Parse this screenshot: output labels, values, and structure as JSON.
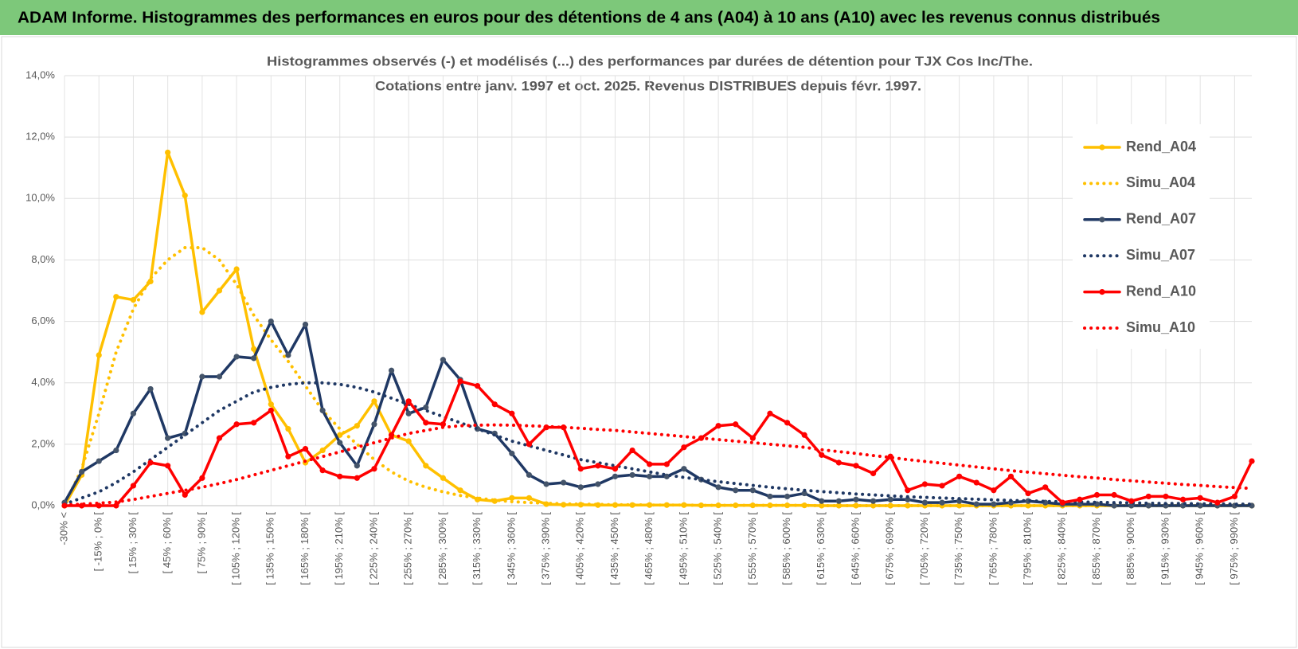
{
  "header": {
    "title": "ADAM Informe. Histogrammes des performances en euros pour des détentions de 4 ans (A04) à 10 ans (A10) avec les revenus connus distribués"
  },
  "chart_data": {
    "type": "line",
    "title": [
      "Histogrammes observés (-) et modélisés (...) des performances par durées de détention pour TJX Cos Inc/The.",
      "Cotations entre janv. 1997 et oct. 2025. Revenus DISTRIBUES depuis févr. 1997."
    ],
    "categories": [
      "-30% <",
      null,
      "[ -15% ; 0% [",
      null,
      "[ 15% ; 30% [",
      null,
      "[ 45% ; 60% [",
      null,
      "[ 75% ; 90% [",
      null,
      "[ 105% ; 120% [",
      null,
      "[ 135% ; 150% [",
      null,
      "[ 165% ; 180% [",
      null,
      "[ 195% ; 210% [",
      null,
      "[ 225% ; 240% [",
      null,
      "[ 255% ; 270% [",
      null,
      "[ 285% ; 300% [",
      null,
      "[ 315% ; 330% [",
      null,
      "[ 345% ; 360% [",
      null,
      "[ 375% ; 390% [",
      null,
      "[ 405% ; 420% [",
      null,
      "[ 435% ; 450% [",
      null,
      "[ 465% ; 480% [",
      null,
      "[ 495% ; 510% [",
      null,
      "[ 525% ; 540% [",
      null,
      "[ 555% ; 570% [",
      null,
      "[ 585% ; 600% [",
      null,
      "[ 615% ; 630% [",
      null,
      "[ 645% ; 660% [",
      null,
      "[ 675% ; 690% [",
      null,
      "[ 705% ; 720% [",
      null,
      "[ 735% ; 750% [",
      null,
      "[ 765% ; 780% [",
      null,
      "[ 795% ; 810% [",
      null,
      "[ 825% ; 840% [",
      null,
      "[ 855% ; 870% [",
      null,
      "[ 885% ; 900% [",
      null,
      "[ 915% ; 930% [",
      null,
      "[ 945% ; 960% [",
      null,
      "[ 975% ; 990% [",
      null
    ],
    "series": [
      {
        "name": "Rend_A04",
        "color": "#ffc000",
        "style": "solid",
        "values": [
          0.0,
          1.0,
          4.9,
          6.8,
          6.7,
          7.3,
          11.5,
          10.1,
          6.3,
          7.0,
          7.7,
          5.1,
          3.3,
          2.5,
          1.4,
          1.8,
          2.3,
          2.6,
          3.4,
          2.3,
          2.1,
          1.3,
          0.9,
          0.5,
          0.2,
          0.15,
          0.25,
          0.25,
          0.05,
          0.03,
          0.03,
          0.02,
          0.02,
          0.02,
          0.02,
          0.02,
          0.02,
          0.01,
          0.01,
          0.01,
          0.01,
          0.01,
          0.01,
          0.01,
          0,
          0,
          0,
          0,
          0,
          0,
          0,
          0,
          0,
          0,
          0,
          0,
          0,
          0,
          0,
          0,
          0,
          0,
          0,
          0,
          0,
          0,
          0,
          0,
          0,
          0
        ]
      },
      {
        "name": "Simu_A04",
        "color": "#ffc000",
        "style": "dotted",
        "values": [
          0.0,
          1.2,
          3.0,
          5.0,
          6.4,
          7.4,
          8.0,
          8.4,
          8.4,
          8.0,
          7.2,
          6.2,
          5.4,
          4.7,
          3.9,
          3.1,
          2.5,
          2.0,
          1.5,
          1.1,
          0.8,
          0.6,
          0.45,
          0.33,
          0.25,
          0.18,
          0.13,
          0.1,
          0.08,
          0.06,
          0.05,
          0.04,
          0.03,
          0.03,
          0.02,
          0.02,
          0.02,
          0.01,
          0.01,
          0.01,
          0.01,
          0.01,
          0.01,
          0.01,
          0,
          0,
          0,
          0,
          0,
          0,
          0,
          0,
          0,
          0,
          0,
          0,
          0,
          0,
          0,
          0,
          0,
          0,
          0,
          0,
          0,
          0,
          0,
          0,
          0,
          0
        ]
      },
      {
        "name": "Rend_A07",
        "color": "#1f3864",
        "style": "solid",
        "values": [
          0.1,
          1.1,
          1.45,
          1.8,
          3.0,
          3.8,
          2.2,
          2.35,
          4.2,
          4.2,
          4.85,
          4.8,
          6.0,
          4.9,
          5.9,
          3.1,
          2.05,
          1.3,
          2.65,
          4.4,
          3.0,
          3.2,
          4.75,
          4.1,
          2.5,
          2.35,
          1.7,
          1.0,
          0.7,
          0.75,
          0.6,
          0.7,
          0.95,
          1.0,
          0.95,
          0.95,
          1.2,
          0.85,
          0.6,
          0.5,
          0.5,
          0.3,
          0.3,
          0.4,
          0.15,
          0.15,
          0.2,
          0.15,
          0.2,
          0.2,
          0.1,
          0.1,
          0.15,
          0.05,
          0.05,
          0.1,
          0.15,
          0.1,
          0.05,
          0.05,
          0.05,
          0,
          0,
          0,
          0,
          0,
          0,
          0,
          0,
          0
        ]
      },
      {
        "name": "Simu_A07",
        "color": "#1f3864",
        "style": "dotted",
        "values": [
          0.05,
          0.25,
          0.45,
          0.75,
          1.1,
          1.5,
          1.9,
          2.3,
          2.7,
          3.1,
          3.4,
          3.7,
          3.85,
          3.95,
          4.0,
          4.0,
          3.95,
          3.85,
          3.7,
          3.5,
          3.3,
          3.1,
          2.9,
          2.7,
          2.5,
          2.3,
          2.1,
          1.95,
          1.8,
          1.65,
          1.5,
          1.4,
          1.3,
          1.2,
          1.1,
          1.0,
          0.92,
          0.85,
          0.78,
          0.72,
          0.66,
          0.6,
          0.55,
          0.5,
          0.46,
          0.42,
          0.38,
          0.35,
          0.32,
          0.29,
          0.27,
          0.25,
          0.23,
          0.21,
          0.19,
          0.17,
          0.16,
          0.14,
          0.13,
          0.12,
          0.11,
          0.1,
          0.09,
          0.08,
          0.07,
          0.07,
          0.06,
          0.06,
          0.05,
          0.05
        ]
      },
      {
        "name": "Rend_A10",
        "color": "#ff0000",
        "style": "solid",
        "values": [
          0,
          0,
          0,
          0,
          0.65,
          1.4,
          1.3,
          0.35,
          0.9,
          2.2,
          2.65,
          2.7,
          3.1,
          1.6,
          1.85,
          1.15,
          0.95,
          0.9,
          1.2,
          2.3,
          3.4,
          2.7,
          2.65,
          4.05,
          3.9,
          3.3,
          3.0,
          2.0,
          2.55,
          2.55,
          1.2,
          1.3,
          1.2,
          1.8,
          1.35,
          1.35,
          1.9,
          2.2,
          2.6,
          2.65,
          2.2,
          3.0,
          2.7,
          2.3,
          1.65,
          1.4,
          1.3,
          1.05,
          1.6,
          0.5,
          0.7,
          0.65,
          0.95,
          0.75,
          0.5,
          0.95,
          0.4,
          0.6,
          0.1,
          0.2,
          0.35,
          0.35,
          0.15,
          0.3,
          0.3,
          0.2,
          0.25,
          0.1,
          0.3,
          1.45
        ]
      },
      {
        "name": "Simu_A10",
        "color": "#ff0000",
        "style": "dotted",
        "values": [
          0.02,
          0.05,
          0.08,
          0.12,
          0.2,
          0.3,
          0.4,
          0.5,
          0.6,
          0.72,
          0.85,
          1.0,
          1.15,
          1.3,
          1.45,
          1.6,
          1.75,
          1.9,
          2.05,
          2.2,
          2.35,
          2.45,
          2.55,
          2.6,
          2.62,
          2.63,
          2.62,
          2.6,
          2.58,
          2.55,
          2.52,
          2.48,
          2.45,
          2.4,
          2.35,
          2.3,
          2.25,
          2.2,
          2.15,
          2.1,
          2.05,
          2.0,
          1.95,
          1.9,
          1.82,
          1.76,
          1.7,
          1.63,
          1.57,
          1.5,
          1.44,
          1.38,
          1.32,
          1.26,
          1.2,
          1.14,
          1.09,
          1.04,
          0.99,
          0.94,
          0.9,
          0.85,
          0.81,
          0.77,
          0.73,
          0.69,
          0.66,
          0.62,
          0.59,
          0.56
        ]
      }
    ],
    "ylim": [
      0,
      14
    ],
    "yticks": [
      {
        "value": 0,
        "label": "0,0%"
      },
      {
        "value": 2,
        "label": "2,0%"
      },
      {
        "value": 4,
        "label": "4,0%"
      },
      {
        "value": 6,
        "label": "6,0%"
      },
      {
        "value": 8,
        "label": "8,0%"
      },
      {
        "value": 10,
        "label": "10,0%"
      },
      {
        "value": 12,
        "label": "12,0%"
      },
      {
        "value": 14,
        "label": "14,0%"
      }
    ],
    "grid": true,
    "legend": "right"
  }
}
